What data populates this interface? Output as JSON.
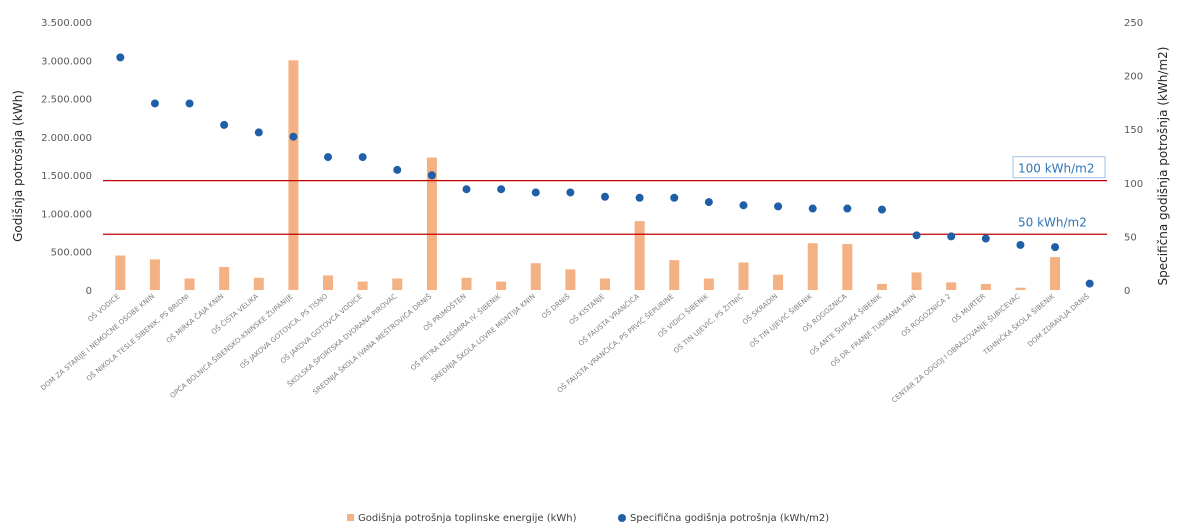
{
  "chart_data": {
    "type": "bar",
    "y_left_label": "Godišnja potrošnja (kWh)",
    "y_right_label": "Specifična godišnja potrošnja (kWh/m2)",
    "y_left_ticks": [
      "0",
      "500.000",
      "1.000.000",
      "1.500.000",
      "2.000.000",
      "2.500.000",
      "3.000.000",
      "3.500.000"
    ],
    "y_left_tick_values": [
      0,
      500000,
      1000000,
      1500000,
      2000000,
      2500000,
      3000000,
      3500000
    ],
    "y_right_ticks": [
      "0",
      "50",
      "100",
      "150",
      "200",
      "250"
    ],
    "y_right_tick_values": [
      0,
      50,
      100,
      150,
      200,
      250
    ],
    "ylim_left": [
      0,
      3500000
    ],
    "ylim_right": [
      0,
      250
    ],
    "categories": [
      "OŠ VODICE",
      "DOM ZA STARIJE I NEMOĆNE OSOBE KNIN",
      "OŠ NIKOLA TESLE ŠIBENIK, PS BRIONI",
      "OŠ MIRKA ČAJA KNIN",
      "OŠ ČISTA VELIKA",
      "OPĆA BOLNICA ŠIBENSKO-KNINSKE ŽUPANIJE",
      "OŠ JAKOVA GOTOVCA, PS TISNO",
      "OŠ JAKOVA GOTOVCA VODICE",
      "ŠKOLSKA ŠPORTSKA DVORANA PIROVAC",
      "SREDNJA ŠKOLA IVANA MEŠTROVIĆA DRNIŠ",
      "OŠ PRIMOŠTEN",
      "OŠ PETRA KREŠIMIRA IV. ŠIBENIK",
      "SREDNJA ŠKOLA LOVRE MONTIJA KNIN",
      "OŠ DRNIŠ",
      "OŠ KISTANJE",
      "OŠ FAUSTA VRANČIĆA",
      "OŠ FAUSTA VRANČIĆA, PS PRVIĆ ŠEPURINE",
      "OŠ VIDICI ŠIBENIK",
      "OŠ TIN UJEVIĆ, PS ŽITNIĆ",
      "OŠ SKRADIN",
      "OŠ TIN UJEVIĆ ŠIBENIK",
      "OŠ ROGOZNICA",
      "OŠ ANTE ŠUPUKA ŠIBENIK",
      "OŠ DR. FRANJE TUĐMANA KNIN",
      "OŠ ROGOZNICA 2",
      "OŠ MURTER",
      "CENTAR ZA ODGOJ I OBRAZOVANJE ŠUBIĆEVAC",
      "TEHNIČKA ŠKOLA ŠIBENIK",
      "DOM ZDRAVLJA DRNIŠ"
    ],
    "series": [
      {
        "name": "Godišnja potrošnja toplinske energije (kWh)",
        "type": "bar",
        "axis": "left",
        "color": "#f4b183",
        "values": [
          450000,
          400000,
          150000,
          300000,
          160000,
          3000000,
          190000,
          110000,
          150000,
          1730000,
          160000,
          110000,
          350000,
          270000,
          150000,
          900000,
          390000,
          150000,
          360000,
          200000,
          610000,
          600000,
          80000,
          230000,
          100000,
          80000,
          30000,
          430000,
          0
        ]
      },
      {
        "name": "Specifična godišnja potrošnja (kWh/m2)",
        "type": "scatter",
        "axis": "right",
        "color": "#1f5fa8",
        "values": [
          217,
          174,
          174,
          154,
          147,
          143,
          124,
          124,
          112,
          107,
          94,
          94,
          91,
          91,
          87,
          86,
          86,
          82,
          79,
          78,
          76,
          76,
          75,
          51,
          50,
          48,
          42,
          40,
          6
        ]
      }
    ],
    "reference_lines": [
      {
        "label": "100 kWh/m2",
        "value": 102,
        "color": "#c00000"
      },
      {
        "label": "50 kWh/m2",
        "value": 52,
        "color": "#c00000"
      }
    ],
    "legend_position": "bottom",
    "grid": false
  }
}
